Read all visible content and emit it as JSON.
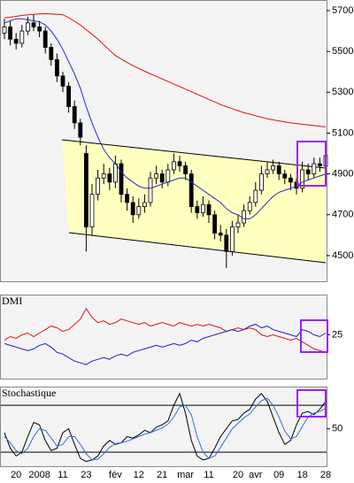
{
  "chart_data": [
    {
      "type": "candlestick",
      "categories": [
        null,
        null,
        "20",
        null,
        null,
        null,
        "2008",
        null,
        null,
        null,
        "11",
        null,
        null,
        null,
        "23",
        null,
        null,
        null,
        null,
        "fév",
        null,
        null,
        null,
        "12",
        null,
        null,
        null,
        "21",
        null,
        null,
        null,
        "mar",
        null,
        null,
        null,
        "11",
        null,
        null,
        null,
        null,
        "20",
        null,
        null,
        "avr",
        null,
        null,
        null,
        "09",
        null,
        null,
        null,
        "18",
        null,
        null,
        null,
        "28"
      ],
      "open": [
        5590,
        5620,
        5560,
        5540,
        5600,
        5640,
        5620,
        5600,
        5520,
        5460,
        5380,
        5330,
        5230,
        5150,
        5000,
        4640,
        4800,
        4880,
        4900,
        4860,
        4950,
        4800,
        4760,
        4700,
        4740,
        4760,
        4880,
        4900,
        4860,
        4920,
        4960,
        4940,
        4900,
        4740,
        4710,
        4750,
        4700,
        4610,
        4600,
        4520,
        4640,
        4660,
        4720,
        4760,
        4820,
        4900,
        4920,
        4940,
        4900,
        4880,
        4860,
        4830,
        4920,
        4900,
        4950,
        4940
      ],
      "high": [
        5660,
        5650,
        5590,
        5630,
        5670,
        5680,
        5650,
        5620,
        5540,
        5490,
        5400,
        5350,
        5260,
        5170,
        5040,
        4850,
        4920,
        4950,
        4930,
        4990,
        4970,
        4830,
        4790,
        4780,
        4800,
        4910,
        4940,
        4920,
        4950,
        5000,
        4990,
        4960,
        4920,
        4770,
        4790,
        4770,
        4720,
        4650,
        4630,
        4670,
        4700,
        4750,
        4790,
        4860,
        4940,
        4960,
        4970,
        4960,
        4920,
        4900,
        4880,
        4960,
        4950,
        4980,
        4980,
        5020
      ],
      "low": [
        5560,
        5530,
        5510,
        5520,
        5580,
        5600,
        5570,
        5490,
        5430,
        5350,
        5300,
        5200,
        5120,
        5040,
        4520,
        4600,
        4770,
        4850,
        4820,
        4830,
        4760,
        4720,
        4660,
        4680,
        4710,
        4740,
        4850,
        4830,
        4840,
        4900,
        4910,
        4870,
        4710,
        4680,
        4690,
        4660,
        4580,
        4570,
        4440,
        4500,
        4610,
        4640,
        4700,
        4740,
        4800,
        4880,
        4900,
        4870,
        4850,
        4820,
        4800,
        4810,
        4870,
        4880,
        4910,
        4920
      ],
      "close": [
        5620,
        5560,
        5540,
        5600,
        5640,
        5620,
        5600,
        5520,
        5460,
        5380,
        5330,
        5230,
        5150,
        5080,
        4640,
        4800,
        4880,
        4900,
        4860,
        4950,
        4800,
        4760,
        4700,
        4740,
        4760,
        4880,
        4900,
        4860,
        4920,
        4960,
        4940,
        4900,
        4740,
        4710,
        4750,
        4700,
        4610,
        4600,
        4520,
        4640,
        4660,
        4720,
        4760,
        4820,
        4900,
        4920,
        4940,
        4900,
        4880,
        4860,
        4830,
        4920,
        4900,
        4950,
        4940,
        4990
      ],
      "series": [
        {
          "color": "#e01010",
          "values": [
            5665,
            5668,
            5672,
            5676,
            5679,
            5682,
            5684,
            5685,
            5684,
            5682,
            5680,
            5665,
            5648,
            5630,
            5607,
            5584,
            5560,
            5533,
            5506,
            5480,
            5463,
            5446,
            5430,
            5417,
            5403,
            5390,
            5378,
            5365,
            5353,
            5340,
            5328,
            5315,
            5303,
            5290,
            5278,
            5265,
            5253,
            5240,
            5230,
            5220,
            5210,
            5200,
            5193,
            5185,
            5178,
            5170,
            5165,
            5160,
            5155,
            5150,
            5147,
            5143,
            5140,
            5137,
            5133,
            5130
          ]
        },
        {
          "color": "#2030c0",
          "values": [
            5640,
            5650,
            5660,
            5660,
            5655,
            5650,
            5645,
            5630,
            5600,
            5560,
            5510,
            5450,
            5390,
            5320,
            5230,
            5150,
            5080,
            5020,
            4980,
            4950,
            4910,
            4880,
            4860,
            4840,
            4830,
            4830,
            4840,
            4850,
            4860,
            4870,
            4880,
            4880,
            4860,
            4840,
            4820,
            4800,
            4780,
            4760,
            4730,
            4710,
            4700,
            4680,
            4680,
            4700,
            4730,
            4760,
            4790,
            4810,
            4820,
            4830,
            4840,
            4860,
            4870,
            4880,
            4890,
            4900
          ]
        }
      ],
      "ylim": [
        4374,
        5752
      ],
      "yticks": [
        4500,
        4700,
        4900,
        5100,
        5300,
        5500,
        5700
      ]
    },
    {
      "type": "line",
      "title": "DMI",
      "series": [
        {
          "color": "#e01010",
          "values": [
            22,
            24,
            23,
            25,
            26,
            24,
            26,
            28,
            30,
            29,
            27,
            28,
            31,
            34,
            40,
            35,
            32,
            33,
            31,
            32,
            34,
            33,
            32,
            31,
            32,
            30,
            31,
            32,
            31,
            30,
            32,
            31,
            30,
            31,
            30,
            31,
            30,
            29,
            27,
            28,
            29,
            28,
            29,
            28,
            25,
            24,
            25,
            24,
            23,
            22,
            23,
            21,
            19,
            17,
            16,
            15
          ]
        },
        {
          "color": "#2020c0",
          "values": [
            20,
            19,
            18,
            17,
            16,
            17,
            19,
            20,
            18,
            15,
            14,
            12,
            10,
            9,
            8,
            10,
            11,
            12,
            11,
            13,
            14,
            13,
            15,
            16,
            17,
            18,
            19,
            18,
            19,
            20,
            19,
            20,
            22,
            21,
            23,
            24,
            25,
            26,
            27,
            28,
            27,
            28,
            30,
            31,
            29,
            30,
            28,
            27,
            26,
            25,
            24,
            28,
            27,
            25,
            24,
            26
          ]
        }
      ],
      "ylim": [
        0,
        48
      ],
      "yticks": [
        25
      ]
    },
    {
      "type": "line",
      "title": "Stochastique",
      "series": [
        {
          "color": "#000000",
          "values": [
            45,
            25,
            15,
            20,
            40,
            58,
            55,
            35,
            22,
            25,
            45,
            50,
            30,
            12,
            8,
            10,
            15,
            28,
            35,
            30,
            32,
            40,
            38,
            42,
            48,
            45,
            52,
            55,
            60,
            80,
            95,
            70,
            35,
            15,
            10,
            12,
            25,
            40,
            50,
            60,
            62,
            70,
            75,
            88,
            95,
            85,
            65,
            45,
            30,
            35,
            55,
            70,
            72,
            68,
            75,
            85
          ]
        },
        {
          "color": "#3070d0",
          "values": [
            40,
            32,
            22,
            18,
            25,
            40,
            50,
            48,
            38,
            28,
            30,
            40,
            40,
            30,
            18,
            10,
            11,
            18,
            26,
            31,
            32,
            34,
            37,
            40,
            43,
            45,
            48,
            51,
            56,
            65,
            78,
            80,
            68,
            40,
            20,
            12,
            15,
            26,
            38,
            50,
            57,
            64,
            69,
            78,
            86,
            89,
            80,
            65,
            47,
            37,
            40,
            53,
            65,
            70,
            72,
            76
          ]
        }
      ],
      "levels": [
        20,
        80
      ],
      "ylim": [
        2,
        104
      ],
      "yticks": [
        50
      ]
    }
  ]
}
